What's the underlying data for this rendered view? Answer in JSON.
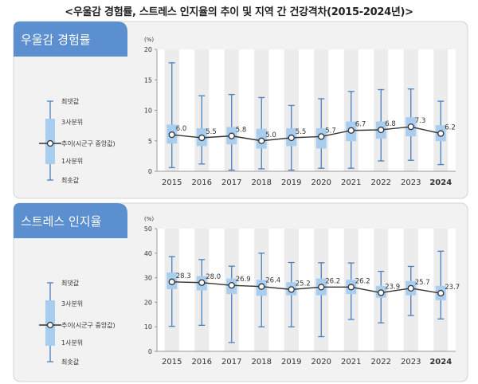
{
  "page_title": "<우울감 경험률, 스트레스 인지율의 추이 및 지역 간 건강격차(2015-2024년)>",
  "colors": {
    "panel_bg": "#f2f2f2",
    "panel_border": "#d4d4d4",
    "header_bg": "#5b8fcf",
    "header_text": "#ffffff",
    "plot_bg": "#ffffff",
    "year_band": "#ececec",
    "box_fill": "#a9cdee",
    "whisker": "#4a7fc0",
    "trend_line": "#333333",
    "marker_fill": "#ffffff",
    "text": "#333333"
  },
  "legend": {
    "max": "최댓값",
    "q3": "3사분위",
    "median": "추이(시군구 중앙값)",
    "q1": "1사분위",
    "min": "최솟값"
  },
  "chart_data": [
    {
      "type": "box",
      "title": "우울감 경험률",
      "unit": "(%)",
      "ylim": [
        0,
        20
      ],
      "yticks": [
        0,
        5,
        10,
        15,
        20
      ],
      "categories": [
        "2015",
        "2016",
        "2017",
        "2018",
        "2019",
        "2020",
        "2021",
        "2022",
        "2023",
        "2024"
      ],
      "median": [
        6.0,
        5.5,
        5.8,
        5.0,
        5.5,
        5.7,
        6.7,
        6.8,
        7.3,
        6.2
      ],
      "median_labels": [
        "6.0",
        "5.5",
        "5.8",
        "5.0",
        "5.5",
        "5.7",
        "6.7",
        "6.8",
        "7.3",
        "6.2"
      ],
      "q1": [
        4.6,
        4.2,
        4.5,
        3.8,
        4.2,
        3.8,
        5.0,
        5.4,
        5.8,
        5.0
      ],
      "q3": [
        7.6,
        7.0,
        7.2,
        6.9,
        7.0,
        7.0,
        8.1,
        8.1,
        8.8,
        7.5
      ],
      "min": [
        0.6,
        1.2,
        0.2,
        0.4,
        0.2,
        0.5,
        0.5,
        1.7,
        1.8,
        1.1
      ],
      "max": [
        17.8,
        12.4,
        12.6,
        12.1,
        10.8,
        11.9,
        13.1,
        13.4,
        13.5,
        11.5
      ]
    },
    {
      "type": "box",
      "title": "스트레스 인지율",
      "unit": "(%)",
      "ylim": [
        0,
        50
      ],
      "yticks": [
        0,
        10,
        20,
        30,
        40,
        50
      ],
      "categories": [
        "2015",
        "2016",
        "2017",
        "2018",
        "2019",
        "2020",
        "2021",
        "2022",
        "2023",
        "2024"
      ],
      "median": [
        28.3,
        28.0,
        26.9,
        26.4,
        25.2,
        26.2,
        26.2,
        23.9,
        25.7,
        23.7
      ],
      "median_labels": [
        "28.3",
        "28.0",
        "26.9",
        "26.4",
        "25.2",
        "26.2",
        "26.2",
        "23.9",
        "25.7",
        "23.7"
      ],
      "q1": [
        25.5,
        25.0,
        23.5,
        22.8,
        23.0,
        23.0,
        23.5,
        22.0,
        23.0,
        21.0
      ],
      "q3": [
        32.0,
        30.5,
        29.5,
        29.0,
        28.0,
        29.5,
        29.0,
        26.5,
        28.5,
        26.5
      ],
      "min": [
        10.2,
        10.6,
        3.6,
        10.0,
        10.0,
        6.0,
        13.0,
        11.6,
        14.6,
        13.2
      ],
      "max": [
        38.6,
        37.4,
        34.7,
        40.0,
        36.2,
        36.1,
        36.0,
        32.6,
        34.6,
        40.8
      ]
    }
  ]
}
